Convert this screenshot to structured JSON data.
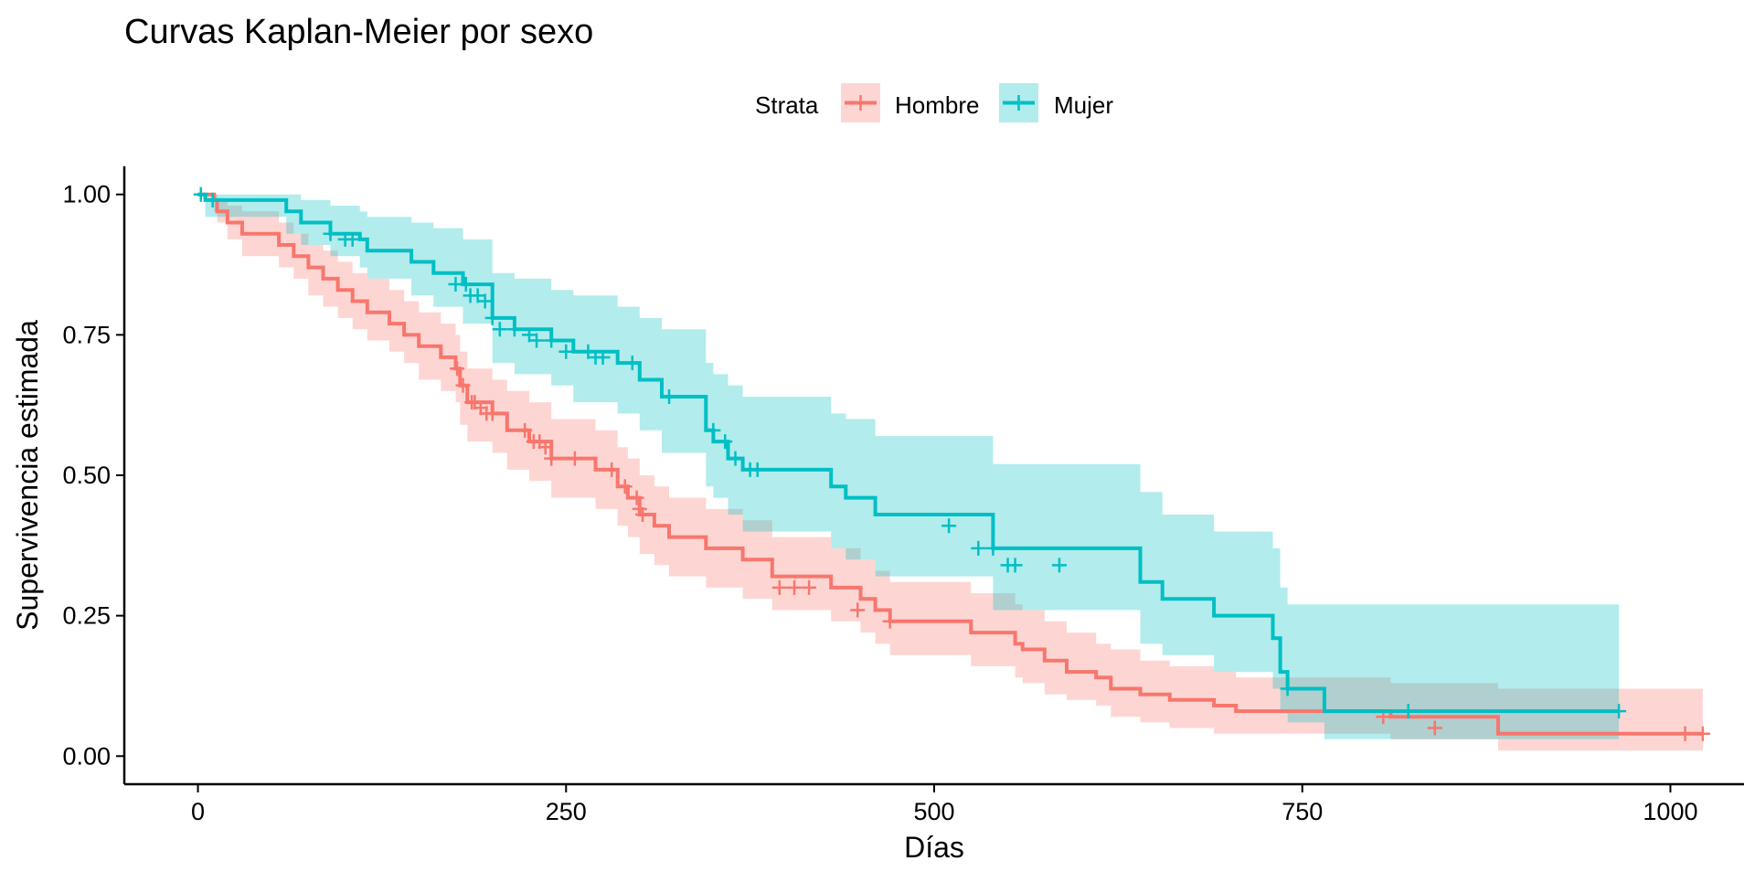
{
  "chart_data": {
    "type": "line",
    "title": "Curvas Kaplan-Meier por sexo",
    "xlabel": "Días",
    "ylabel": "Supervivencia estimada",
    "xlim": [
      -50,
      1050
    ],
    "ylim": [
      -0.05,
      1.05
    ],
    "x_ticks": [
      0,
      250,
      500,
      750,
      1000
    ],
    "x_tick_labels": [
      "0",
      "250",
      "500",
      "750",
      "1000"
    ],
    "y_ticks": [
      0,
      0.25,
      0.5,
      0.75,
      1
    ],
    "y_tick_labels": [
      "0.00",
      "0.25",
      "0.50",
      "0.75",
      "1.00"
    ],
    "grid": false,
    "legend_title": "Strata",
    "legend_position": "top",
    "series": [
      {
        "name": "Hombre",
        "color": "#F8766D",
        "fill": "#F8766D",
        "step_x": [
          0,
          11,
          13,
          20,
          30,
          55,
          65,
          75,
          85,
          95,
          105,
          115,
          130,
          140,
          150,
          165,
          175,
          178,
          183,
          200,
          210,
          225,
          240,
          270,
          285,
          292,
          300,
          310,
          320,
          345,
          370,
          390,
          430,
          450,
          460,
          470,
          525,
          555,
          560,
          575,
          590,
          610,
          620,
          640,
          660,
          690,
          705,
          810,
          883,
          1022
        ],
        "step_y": [
          1.0,
          0.99,
          0.97,
          0.95,
          0.93,
          0.91,
          0.89,
          0.87,
          0.85,
          0.83,
          0.81,
          0.79,
          0.77,
          0.75,
          0.73,
          0.71,
          0.69,
          0.66,
          0.63,
          0.61,
          0.58,
          0.56,
          0.53,
          0.51,
          0.48,
          0.46,
          0.43,
          0.41,
          0.39,
          0.37,
          0.35,
          0.32,
          0.3,
          0.28,
          0.26,
          0.24,
          0.22,
          0.2,
          0.19,
          0.17,
          0.15,
          0.14,
          0.12,
          0.11,
          0.1,
          0.09,
          0.08,
          0.07,
          0.04,
          0.04
        ],
        "ci_lower": [
          1.0,
          0.97,
          0.95,
          0.92,
          0.89,
          0.87,
          0.85,
          0.82,
          0.8,
          0.78,
          0.76,
          0.74,
          0.72,
          0.7,
          0.67,
          0.65,
          0.63,
          0.59,
          0.56,
          0.54,
          0.51,
          0.49,
          0.46,
          0.44,
          0.41,
          0.39,
          0.36,
          0.34,
          0.32,
          0.3,
          0.28,
          0.26,
          0.24,
          0.22,
          0.2,
          0.18,
          0.16,
          0.14,
          0.13,
          0.11,
          0.1,
          0.09,
          0.07,
          0.06,
          0.05,
          0.04,
          0.04,
          0.03,
          0.01,
          0.01
        ],
        "ci_upper": [
          1.0,
          1.0,
          0.99,
          0.98,
          0.97,
          0.95,
          0.93,
          0.91,
          0.9,
          0.88,
          0.86,
          0.85,
          0.83,
          0.81,
          0.79,
          0.77,
          0.75,
          0.72,
          0.69,
          0.67,
          0.65,
          0.63,
          0.6,
          0.58,
          0.55,
          0.53,
          0.5,
          0.48,
          0.46,
          0.44,
          0.42,
          0.39,
          0.37,
          0.35,
          0.33,
          0.31,
          0.29,
          0.27,
          0.26,
          0.24,
          0.22,
          0.2,
          0.19,
          0.17,
          0.16,
          0.15,
          0.14,
          0.13,
          0.12,
          0.12
        ],
        "censor_x": [
          176,
          180,
          186,
          188,
          192,
          196,
          200,
          222,
          228,
          232,
          236,
          240,
          256,
          281,
          290,
          298,
          300,
          302,
          395,
          405,
          415,
          448,
          470,
          805,
          840,
          1010,
          1022
        ],
        "censor_y": [
          0.69,
          0.66,
          0.63,
          0.63,
          0.62,
          0.61,
          0.61,
          0.58,
          0.56,
          0.56,
          0.55,
          0.53,
          0.53,
          0.51,
          0.48,
          0.46,
          0.44,
          0.43,
          0.3,
          0.3,
          0.3,
          0.26,
          0.24,
          0.07,
          0.05,
          0.04,
          0.04
        ]
      },
      {
        "name": "Mujer",
        "color": "#00BFC4",
        "fill": "#00BFC4",
        "step_x": [
          0,
          5,
          60,
          70,
          90,
          110,
          115,
          145,
          160,
          180,
          200,
          215,
          240,
          255,
          285,
          300,
          315,
          345,
          350,
          360,
          370,
          400,
          430,
          440,
          460,
          540,
          640,
          655,
          690,
          730,
          735,
          740,
          765,
          965
        ],
        "step_y": [
          1.0,
          0.99,
          0.97,
          0.95,
          0.93,
          0.92,
          0.9,
          0.88,
          0.86,
          0.84,
          0.78,
          0.76,
          0.74,
          0.72,
          0.7,
          0.67,
          0.64,
          0.58,
          0.56,
          0.53,
          0.51,
          0.51,
          0.48,
          0.46,
          0.43,
          0.37,
          0.31,
          0.28,
          0.25,
          0.21,
          0.15,
          0.12,
          0.08,
          0.08
        ],
        "ci_lower": [
          1.0,
          0.96,
          0.93,
          0.91,
          0.89,
          0.87,
          0.85,
          0.82,
          0.8,
          0.77,
          0.7,
          0.68,
          0.66,
          0.63,
          0.61,
          0.58,
          0.54,
          0.48,
          0.46,
          0.43,
          0.4,
          0.4,
          0.37,
          0.35,
          0.32,
          0.26,
          0.2,
          0.18,
          0.15,
          0.12,
          0.08,
          0.06,
          0.03,
          0.03
        ],
        "ci_upper": [
          1.0,
          1.0,
          1.0,
          0.99,
          0.98,
          0.97,
          0.96,
          0.95,
          0.94,
          0.92,
          0.86,
          0.85,
          0.83,
          0.82,
          0.8,
          0.78,
          0.76,
          0.7,
          0.68,
          0.66,
          0.64,
          0.64,
          0.61,
          0.6,
          0.57,
          0.52,
          0.47,
          0.43,
          0.4,
          0.37,
          0.3,
          0.27,
          0.27,
          0.27
        ],
        "censor_x": [
          2,
          10,
          90,
          100,
          105,
          175,
          182,
          185,
          190,
          195,
          200,
          205,
          215,
          225,
          230,
          240,
          250,
          265,
          270,
          275,
          295,
          320,
          350,
          358,
          365,
          375,
          380,
          510,
          530,
          540,
          550,
          555,
          585,
          740,
          822,
          965
        ],
        "censor_y": [
          1.0,
          0.99,
          0.93,
          0.92,
          0.92,
          0.84,
          0.84,
          0.82,
          0.82,
          0.81,
          0.78,
          0.76,
          0.76,
          0.75,
          0.74,
          0.74,
          0.72,
          0.72,
          0.71,
          0.71,
          0.7,
          0.64,
          0.58,
          0.56,
          0.53,
          0.51,
          0.51,
          0.41,
          0.37,
          0.37,
          0.34,
          0.34,
          0.34,
          0.12,
          0.08,
          0.08
        ]
      }
    ]
  }
}
